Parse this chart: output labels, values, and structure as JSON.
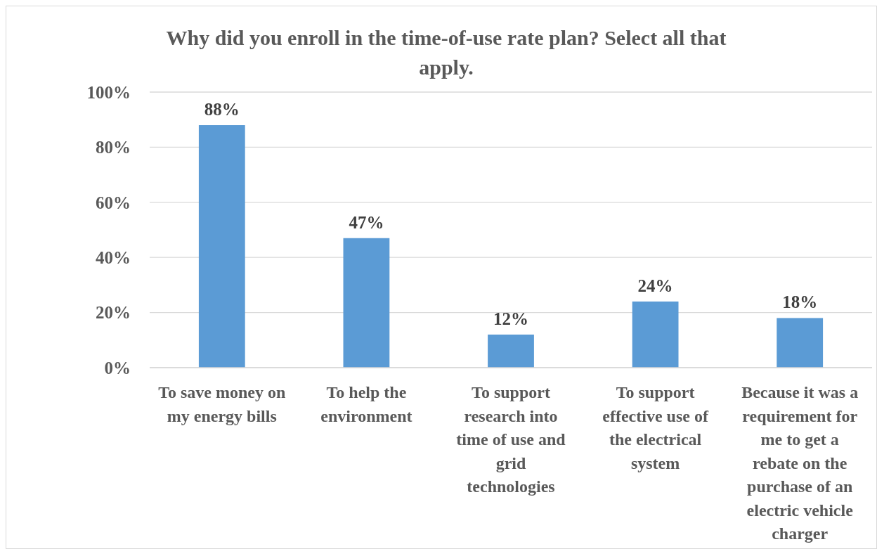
{
  "chart_data": {
    "type": "bar",
    "title": "Why did you enroll in the time-of-use rate plan? Select all that apply.",
    "categories": [
      "To save money on my energy bills",
      "To help the environment",
      "To support research into time of use and grid technologies",
      "To support effective use of the electrical system",
      "Because it was a requirement for me to get a rebate on the purchase of an electric vehicle charger"
    ],
    "values": [
      88,
      47,
      12,
      24,
      18
    ],
    "value_labels": [
      "88%",
      "47%",
      "12%",
      "24%",
      "18%"
    ],
    "color": "#5b9bd5",
    "ylim": [
      0,
      100
    ],
    "yticks": [
      {
        "value": 0,
        "label": "0%"
      },
      {
        "value": 20,
        "label": "20%"
      },
      {
        "value": 40,
        "label": "40%"
      },
      {
        "value": 60,
        "label": "60%"
      },
      {
        "value": 80,
        "label": "80%"
      },
      {
        "value": 100,
        "label": "100%"
      }
    ],
    "grid": "y"
  }
}
